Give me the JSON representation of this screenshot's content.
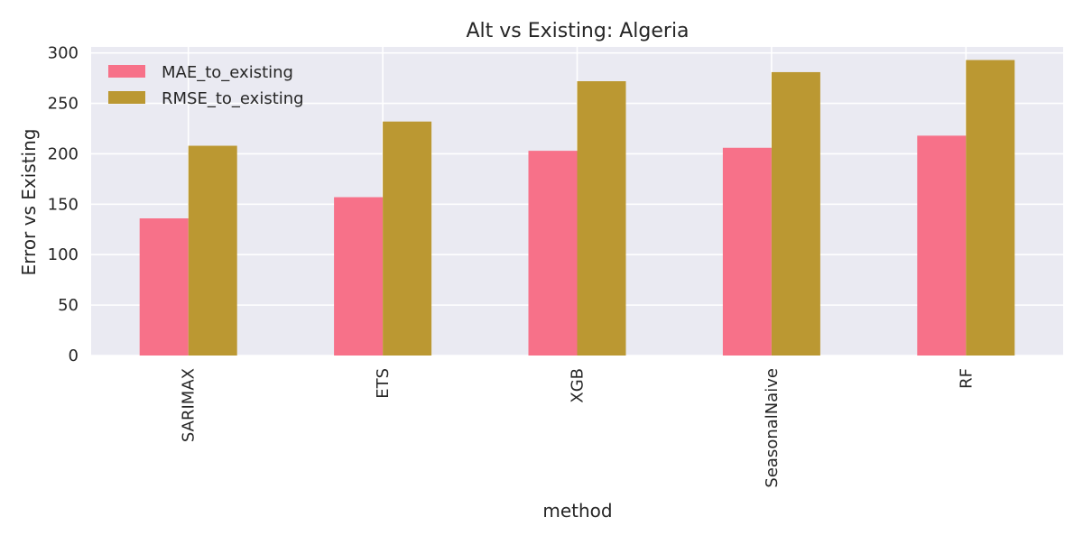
{
  "chart_data": {
    "type": "bar",
    "title": "Alt vs Existing: Algeria",
    "xlabel": "method",
    "ylabel": "Error vs Existing",
    "categories": [
      "SARIMAX",
      "ETS",
      "XGB",
      "SeasonalNaive",
      "RF"
    ],
    "series": [
      {
        "name": "MAE_to_existing",
        "color": "#f77189",
        "values": [
          136,
          157,
          203,
          206,
          218
        ]
      },
      {
        "name": "RMSE_to_existing",
        "color": "#bb9832",
        "values": [
          208,
          232,
          272,
          281,
          293
        ]
      }
    ],
    "ylim": [
      0,
      306
    ],
    "yticks": [
      0,
      50,
      100,
      150,
      200,
      250,
      300
    ],
    "grid": true,
    "legend_position": "top-left",
    "background_color": "#eaeaf2"
  }
}
